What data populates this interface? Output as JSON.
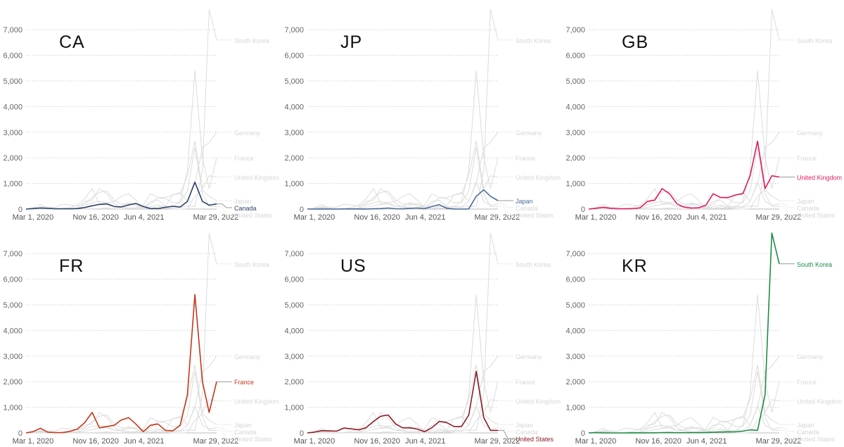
{
  "chart_data": [
    {
      "type": "line",
      "panel": "CA",
      "highlight": "Canada"
    },
    {
      "type": "line",
      "panel": "JP",
      "highlight": "Japan"
    },
    {
      "type": "line",
      "panel": "GB",
      "highlight": "United Kingdom"
    },
    {
      "type": "line",
      "panel": "FR",
      "highlight": "France"
    },
    {
      "type": "line",
      "panel": "US",
      "highlight": "United States"
    },
    {
      "type": "line",
      "panel": "KR",
      "highlight": "South Korea"
    }
  ],
  "shared": {
    "ylim": [
      0,
      8000
    ],
    "yticks": [
      0,
      1000,
      2000,
      3000,
      4000,
      5000,
      6000,
      7000
    ],
    "ytick_labels": [
      "0",
      "1,000",
      "2,000",
      "3,000",
      "4,000",
      "5,000",
      "6,000",
      "7,000"
    ],
    "xlim": [
      "2020-02-01",
      "2022-04-01"
    ],
    "xticks": [
      {
        "date": "2020-03-01",
        "label": "Mar 1, 2020"
      },
      {
        "date": "2020-11-16",
        "label": "Nov 16, 2020"
      },
      {
        "date": "2021-06-04",
        "label": "Jun 4, 2021"
      },
      {
        "date": "2022-03-29",
        "label": "Mar 29, 2022"
      }
    ],
    "grid": true,
    "legend": "direct labels at right end of lines",
    "dates": [
      "2020-02-01",
      "2020-03-01",
      "2020-04-01",
      "2020-05-01",
      "2020-06-01",
      "2020-07-01",
      "2020-08-01",
      "2020-09-01",
      "2020-10-01",
      "2020-11-01",
      "2020-12-01",
      "2021-01-01",
      "2021-02-01",
      "2021-03-01",
      "2021-04-01",
      "2021-05-01",
      "2021-06-01",
      "2021-07-01",
      "2021-08-01",
      "2021-09-01",
      "2021-10-01",
      "2021-11-01",
      "2021-12-01",
      "2022-01-01",
      "2022-02-01",
      "2022-03-01",
      "2022-04-01"
    ],
    "series": [
      {
        "name": "South Korea",
        "values": [
          0,
          10,
          2,
          1,
          1,
          1,
          5,
          2,
          2,
          5,
          15,
          12,
          8,
          8,
          12,
          10,
          10,
          25,
          35,
          45,
          40,
          70,
          120,
          100,
          1500,
          7800,
          6600
        ]
      },
      {
        "name": "Germany",
        "values": [
          0,
          40,
          60,
          10,
          5,
          5,
          15,
          20,
          150,
          250,
          300,
          250,
          100,
          120,
          250,
          150,
          10,
          20,
          100,
          120,
          550,
          650,
          300,
          1000,
          2400,
          2600,
          3000
        ]
      },
      {
        "name": "France",
        "values": [
          0,
          50,
          180,
          30,
          10,
          10,
          60,
          150,
          400,
          800,
          200,
          250,
          300,
          500,
          600,
          350,
          50,
          300,
          350,
          100,
          80,
          300,
          1500,
          5400,
          2000,
          800,
          2000
        ]
      },
      {
        "name": "United Kingdom",
        "values": [
          0,
          30,
          70,
          30,
          10,
          10,
          15,
          50,
          300,
          350,
          800,
          600,
          200,
          80,
          40,
          50,
          150,
          600,
          450,
          450,
          550,
          600,
          1300,
          2650,
          800,
          1300,
          1250
        ]
      },
      {
        "name": "Japan",
        "values": [
          0,
          1,
          3,
          2,
          0,
          5,
          8,
          4,
          4,
          10,
          20,
          40,
          15,
          8,
          30,
          40,
          15,
          100,
          170,
          30,
          1,
          1,
          5,
          500,
          750,
          500,
          330
        ]
      },
      {
        "name": "Canada",
        "values": [
          0,
          20,
          40,
          30,
          10,
          10,
          10,
          20,
          60,
          130,
          180,
          200,
          100,
          80,
          160,
          220,
          100,
          20,
          20,
          70,
          110,
          80,
          300,
          1050,
          300,
          150,
          200
        ]
      },
      {
        "name": "United States",
        "values": [
          0,
          30,
          90,
          80,
          70,
          190,
          160,
          120,
          200,
          450,
          650,
          700,
          350,
          200,
          200,
          150,
          50,
          200,
          450,
          400,
          250,
          250,
          700,
          2400,
          600,
          100,
          100
        ]
      }
    ],
    "colors": {
      "Canada": "#2c4466",
      "Japan": "#4d6a9c",
      "United Kingdom": "#e0195f",
      "France": "#c2381b",
      "United States": "#8c1c24",
      "South Korea": "#1f8c45",
      "background_series": "#dcdcdc",
      "label_muted": "#d6d6d6"
    }
  }
}
